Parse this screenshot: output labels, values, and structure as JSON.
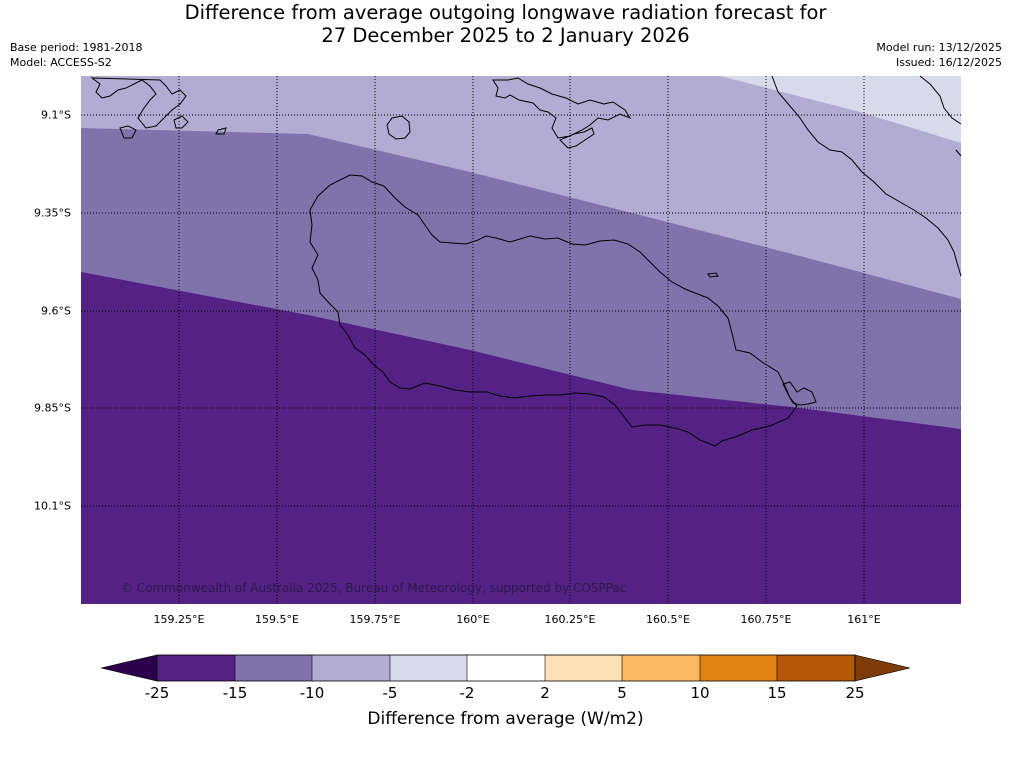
{
  "title": {
    "line1": "Difference from average outgoing longwave radiation forecast for",
    "line2": "27 December 2025 to 2 January 2026"
  },
  "meta": {
    "base_period": "Base period: 1981-2018",
    "model": "Model: ACCESS-S2",
    "model_run": "Model run: 13/12/2025",
    "issued": "Issued: 16/12/2025"
  },
  "map": {
    "lat_labels": [
      "9.1°S",
      "9.35°S",
      "9.6°S",
      "9.85°S",
      "10.1°S"
    ],
    "lon_labels": [
      "159.25°E",
      "159.5°E",
      "159.75°E",
      "160°E",
      "160.25°E",
      "160.5°E",
      "160.75°E",
      "161°E"
    ],
    "copyright": "© Commonwealth of Australia 2025, Bureau of Meteorology, supported by COSPPac",
    "bands": [
      {
        "range": "-25 to -15",
        "color": "#542285"
      },
      {
        "range": "-15 to -10",
        "color": "#8073ac"
      },
      {
        "range": "-10 to -5",
        "color": "#b2abd2"
      },
      {
        "range": "-5 to -2",
        "color": "#d8daeb"
      }
    ],
    "coastline_color": "#000000"
  },
  "colorbar": {
    "ticks": [
      "-25",
      "-15",
      "-10",
      "-5",
      "-2",
      "2",
      "5",
      "10",
      "15",
      "25"
    ],
    "colors": [
      "#542285",
      "#8073ac",
      "#b2abd2",
      "#d8daeb",
      "#ffffff",
      "#fee0b6",
      "#fdb863",
      "#e08214",
      "#b35806"
    ],
    "under_color": "#2d004b",
    "over_color": "#7f3b08",
    "label": "Difference from average (W/m2)"
  }
}
